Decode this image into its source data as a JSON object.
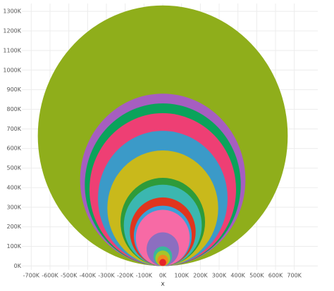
{
  "chart_data": {
    "type": "circles",
    "x_label": "x",
    "values": [
      1330000,
      880000,
      830000,
      780000,
      690000,
      590000,
      450000,
      415000,
      350000,
      308000,
      287000,
      172000,
      100000,
      79000,
      57000,
      36000
    ],
    "colors": [
      "#8fae1b",
      "#a65ec0",
      "#0aa35b",
      "#ee3f74",
      "#3b9ac8",
      "#c9b91b",
      "#2e9b3a",
      "#3bb7b0",
      "#e0351e",
      "#3aa0d6",
      "#f76aa5",
      "#8c6ec0",
      "#3bb79a",
      "#a5c62a",
      "#f08a1c",
      "#e5232a"
    ],
    "xlim": [
      -750000,
      750000
    ],
    "ylim": [
      -20000,
      1340000
    ],
    "xticks": [
      {
        "value": -700000,
        "label": "-700K"
      },
      {
        "value": -600000,
        "label": "-600K"
      },
      {
        "value": -500000,
        "label": "-500K"
      },
      {
        "value": -400000,
        "label": "-400K"
      },
      {
        "value": -300000,
        "label": "-300K"
      },
      {
        "value": -200000,
        "label": "-200K"
      },
      {
        "value": -100000,
        "label": "-100K"
      },
      {
        "value": 0,
        "label": "0K"
      },
      {
        "value": 100000,
        "label": "100K"
      },
      {
        "value": 200000,
        "label": "200K"
      },
      {
        "value": 300000,
        "label": "300K"
      },
      {
        "value": 400000,
        "label": "400K"
      },
      {
        "value": 500000,
        "label": "500K"
      },
      {
        "value": 600000,
        "label": "600K"
      },
      {
        "value": 700000,
        "label": "700K"
      }
    ],
    "yticks": [
      {
        "value": 0,
        "label": "0K"
      },
      {
        "value": 100000,
        "label": "100K"
      },
      {
        "value": 200000,
        "label": "200K"
      },
      {
        "value": 300000,
        "label": "300K"
      },
      {
        "value": 400000,
        "label": "400K"
      },
      {
        "value": 500000,
        "label": "500K"
      },
      {
        "value": 600000,
        "label": "600K"
      },
      {
        "value": 700000,
        "label": "700K"
      },
      {
        "value": 800000,
        "label": "800K"
      },
      {
        "value": 900000,
        "label": "900K"
      },
      {
        "value": 1000000,
        "label": "1000K"
      },
      {
        "value": 1100000,
        "label": "1100K"
      },
      {
        "value": 1200000,
        "label": "1200K"
      },
      {
        "value": 1300000,
        "label": "1300K"
      }
    ],
    "grid": true
  }
}
